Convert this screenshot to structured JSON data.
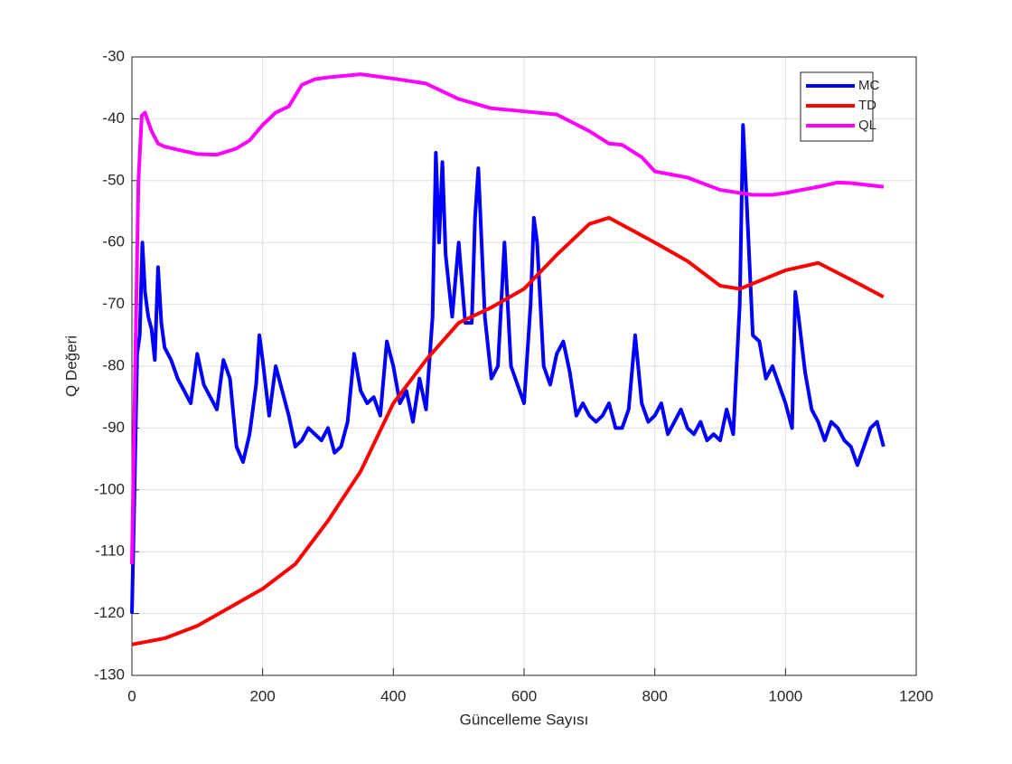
{
  "chart_data": {
    "type": "line",
    "x_label": "Güncelleme Sayısı",
    "y_label": "Q Değeri",
    "xlim": [
      0,
      1200
    ],
    "xticks": [
      0,
      200,
      400,
      600,
      800,
      1000,
      1200
    ],
    "ylim": [
      -130,
      -30
    ],
    "yticks": [
      -130,
      -120,
      -110,
      -100,
      -90,
      -80,
      -70,
      -60,
      -50,
      -40,
      -30
    ],
    "grid": true,
    "legend": "top-right",
    "series": [
      {
        "name": "MC",
        "color": "#0000ff",
        "x": [
          0,
          4,
          8,
          12,
          16,
          20,
          25,
          30,
          35,
          40,
          45,
          50,
          60,
          70,
          80,
          90,
          100,
          110,
          120,
          130,
          140,
          150,
          160,
          170,
          180,
          190,
          195,
          200,
          210,
          220,
          230,
          240,
          250,
          260,
          270,
          280,
          290,
          300,
          310,
          320,
          330,
          340,
          350,
          360,
          370,
          380,
          390,
          400,
          410,
          420,
          430,
          440,
          450,
          460,
          465,
          470,
          475,
          480,
          490,
          500,
          510,
          520,
          525,
          530,
          540,
          550,
          560,
          570,
          580,
          590,
          600,
          610,
          615,
          620,
          630,
          640,
          650,
          660,
          670,
          680,
          690,
          700,
          710,
          720,
          730,
          740,
          750,
          760,
          770,
          780,
          790,
          800,
          810,
          820,
          830,
          840,
          850,
          860,
          870,
          880,
          890,
          900,
          910,
          920,
          930,
          935,
          940,
          950,
          960,
          970,
          980,
          990,
          1000,
          1010,
          1015,
          1020,
          1030,
          1040,
          1050,
          1060,
          1070,
          1080,
          1090,
          1100,
          1110,
          1120,
          1130,
          1140,
          1150
        ],
        "values": [
          -120,
          -100,
          -78,
          -75,
          -60,
          -68,
          -72,
          -74,
          -79,
          -64,
          -73,
          -77,
          -79,
          -82,
          -84,
          -86,
          -78,
          -83,
          -85,
          -87,
          -79,
          -82,
          -93,
          -95.5,
          -91,
          -83,
          -75,
          -79,
          -88,
          -80,
          -84,
          -88,
          -93,
          -92,
          -90,
          -91,
          -92,
          -90,
          -94,
          -93,
          -89,
          -78,
          -84,
          -86,
          -85,
          -88,
          -76,
          -80,
          -86,
          -84,
          -89,
          -82,
          -87,
          -72,
          -45.5,
          -60,
          -47,
          -62,
          -72,
          -60,
          -73,
          -73,
          -56,
          -48,
          -72,
          -82,
          -80,
          -60,
          -80,
          -83,
          -86,
          -70,
          -56,
          -60,
          -80,
          -83,
          -78,
          -76,
          -81,
          -88,
          -86,
          -88,
          -89,
          -88,
          -86,
          -90,
          -90,
          -87,
          -75,
          -86,
          -89,
          -88,
          -86,
          -91,
          -89,
          -87,
          -90,
          -91,
          -89,
          -92,
          -91,
          -92,
          -87,
          -91,
          -70,
          -41,
          -52,
          -75,
          -76,
          -82,
          -80,
          -83,
          -86,
          -90,
          -68,
          -72,
          -81,
          -87,
          -89,
          -92,
          -89,
          -90,
          -92,
          -93,
          -96,
          -93,
          -90,
          -89,
          -93
        ]
      },
      {
        "name": "TD",
        "color": "#ff0000",
        "x": [
          0,
          50,
          100,
          150,
          175,
          200,
          250,
          300,
          350,
          400,
          450,
          500,
          550,
          600,
          650,
          700,
          730,
          800,
          850,
          900,
          930,
          1000,
          1050,
          1100,
          1150
        ],
        "values": [
          -125,
          -124,
          -122,
          -119,
          -117.5,
          -116,
          -112,
          -105,
          -97,
          -86,
          -79,
          -73,
          -70.5,
          -67.5,
          -62,
          -57,
          -56,
          -60,
          -63,
          -67,
          -67.5,
          -64.5,
          -63.3,
          -66,
          -68.8
        ]
      },
      {
        "name": "QL",
        "color": "#ff00ff",
        "x": [
          0,
          5,
          10,
          15,
          20,
          30,
          40,
          50,
          70,
          100,
          130,
          160,
          180,
          200,
          220,
          240,
          260,
          280,
          300,
          350,
          400,
          450,
          500,
          550,
          600,
          650,
          700,
          730,
          750,
          780,
          800,
          850,
          900,
          950,
          980,
          1000,
          1050,
          1080,
          1100,
          1150
        ],
        "values": [
          -112,
          -80,
          -50,
          -39.5,
          -39,
          -42,
          -44,
          -44.5,
          -45,
          -45.7,
          -45.8,
          -44.8,
          -43.5,
          -41,
          -39,
          -38,
          -34.5,
          -33.6,
          -33.3,
          -32.8,
          -33.5,
          -34.3,
          -36.8,
          -38.3,
          -38.8,
          -39.3,
          -42,
          -44,
          -44.2,
          -46.2,
          -48.5,
          -49.5,
          -51.5,
          -52.3,
          -52.3,
          -52,
          -51,
          -50.3,
          -50.4,
          -51
        ]
      }
    ]
  }
}
